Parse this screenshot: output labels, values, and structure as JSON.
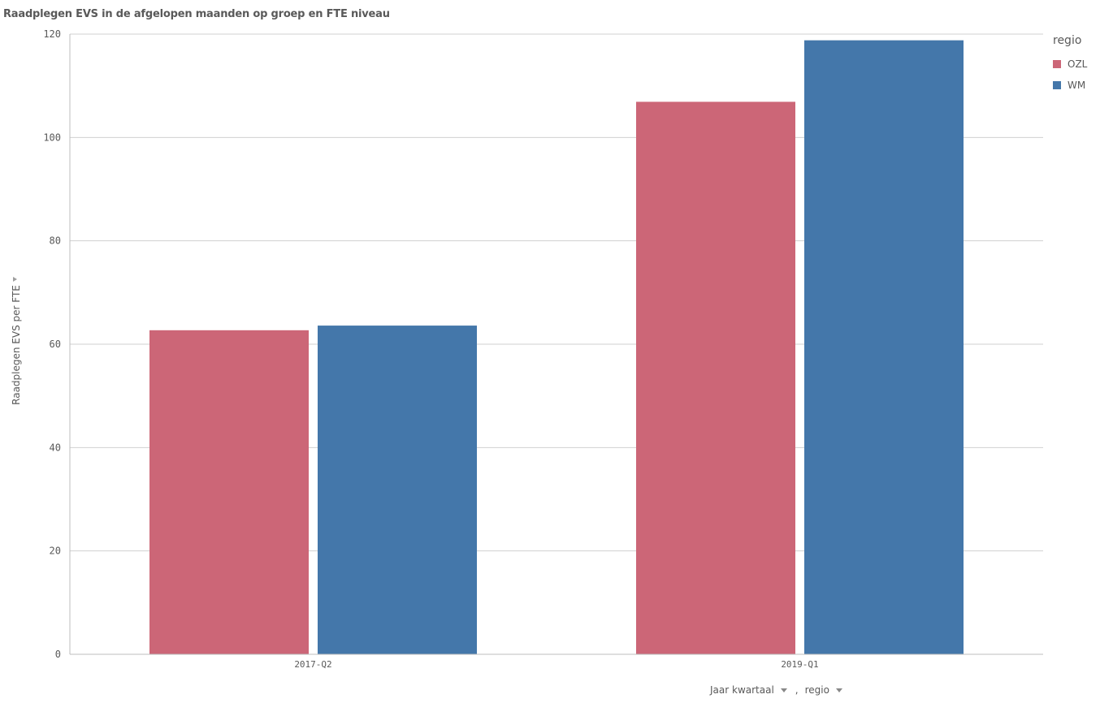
{
  "title": "Raadplegen EVS in de afgelopen maanden op groep en FTE niveau",
  "x_dimensions": [
    {
      "label": "Jaar kwartaal"
    },
    {
      "label": "regio"
    }
  ],
  "x_separator": ",",
  "legend": {
    "title": "regio",
    "items": [
      {
        "label": "OZL",
        "color": "#cc6677"
      },
      {
        "label": "WM",
        "color": "#4477aa"
      }
    ]
  },
  "chart_data": {
    "type": "bar",
    "title": "Raadplegen EVS in de afgelopen maanden op groep en FTE niveau",
    "categories": [
      "2017-Q2",
      "2019-Q1"
    ],
    "series": [
      {
        "name": "OZL",
        "color": "#cc6677",
        "values": [
          62.7,
          106.9
        ]
      },
      {
        "name": "WM",
        "color": "#4477aa",
        "values": [
          63.6,
          118.8
        ]
      }
    ],
    "xlabel": "Jaar kwartaal",
    "ylabel": "Raadplegen EVS per FTE",
    "ylim": [
      0,
      120
    ],
    "yticks": [
      0,
      20,
      40,
      60,
      80,
      100,
      120
    ],
    "grid": true,
    "legend_position": "top-right"
  }
}
